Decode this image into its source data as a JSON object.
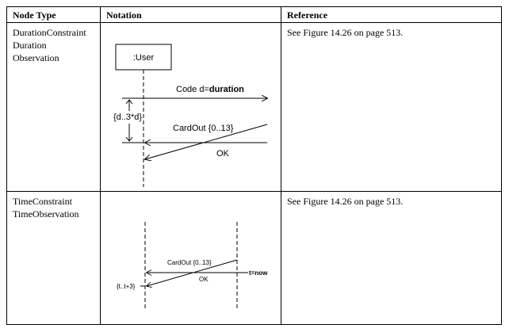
{
  "headers": {
    "node_type": "Node Type",
    "notation": "Notation",
    "reference": "Reference"
  },
  "rows": [
    {
      "node_type_lines": [
        "DurationConstraint",
        "Duration",
        "Observation"
      ],
      "reference": "See Figure 14.26 on page 513.",
      "diagram": {
        "lifeline_label": ":User",
        "message1_prefix": "Code d=",
        "message1_bold": "duration",
        "constraint_label": "{d..3*d}",
        "message2_label": "CardOut {0..13}",
        "reply_label": "OK"
      }
    },
    {
      "node_type_lines": [
        "TimeConstraint",
        "TimeObservation"
      ],
      "reference": "See Figure 14.26 on page 513.",
      "diagram": {
        "message_label": "CardOut {0..13}",
        "observation_label": "t=now",
        "reply_label": "OK",
        "constraint_label": "{t..t+3}"
      }
    }
  ]
}
